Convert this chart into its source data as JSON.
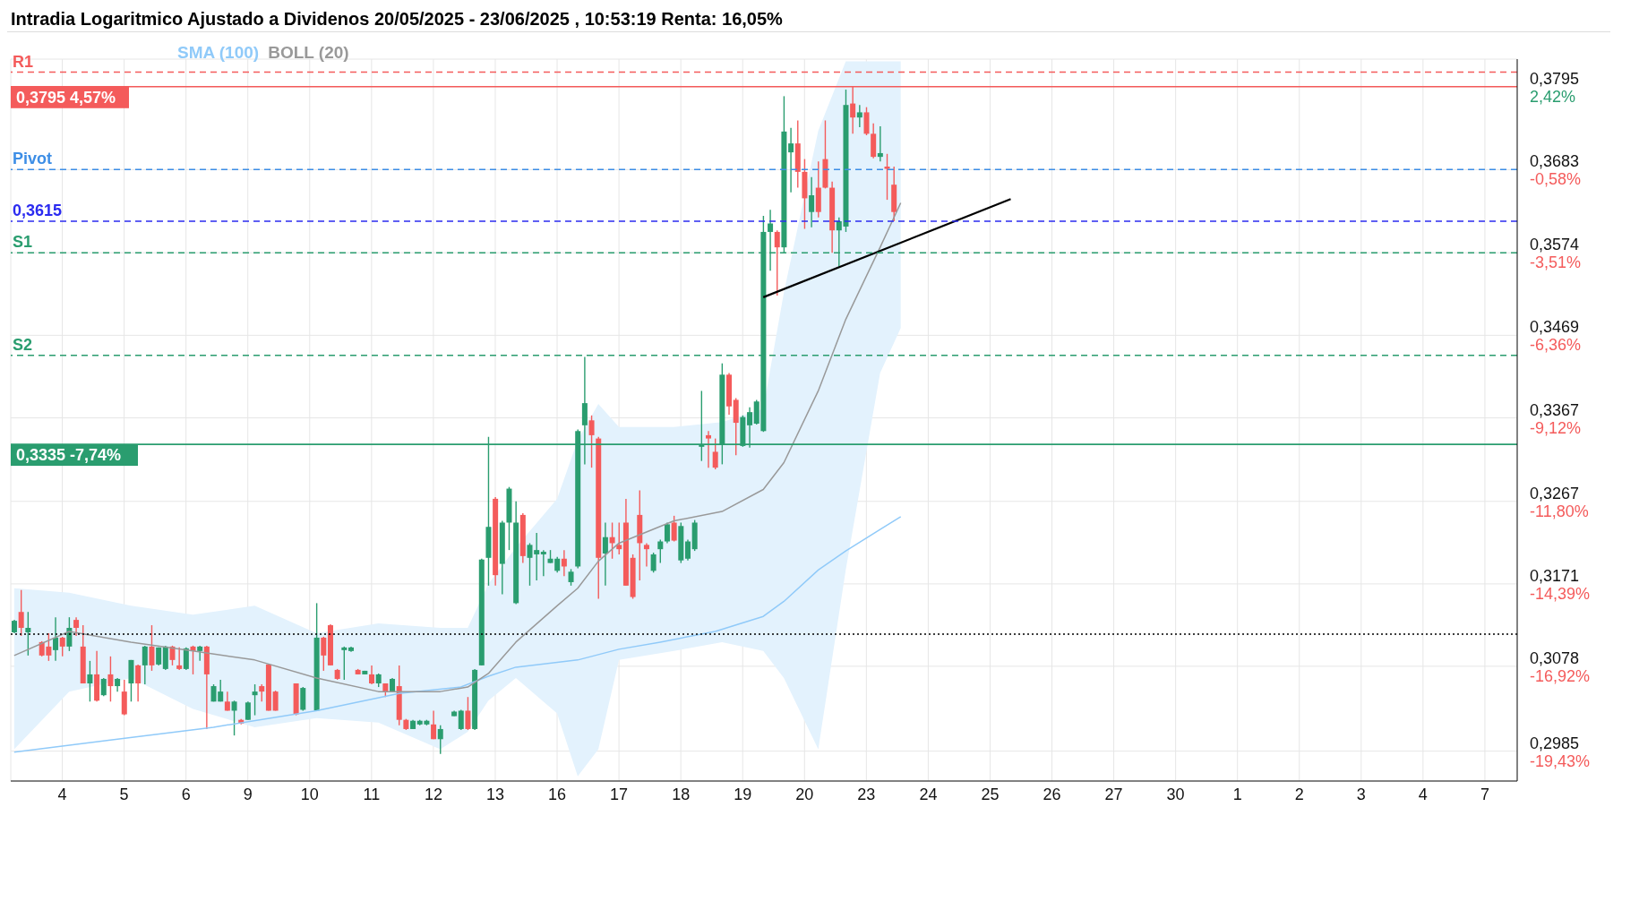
{
  "chart_data": {
    "type": "candlestick",
    "title": "Intradia Logaritmico Ajustado a Dividenos 20/05/2025 - 23/06/2025 , 10:53:19 Renta: 16,05%",
    "categories": [
      null,
      null,
      null,
      null,
      null,
      null,
      null,
      "4",
      null,
      null,
      null,
      null,
      null,
      null,
      null,
      null,
      "5",
      null,
      null,
      null,
      null,
      null,
      null,
      null,
      null,
      "6",
      null,
      null,
      null,
      null,
      null,
      null,
      null,
      null,
      "9",
      null,
      null,
      null,
      null,
      null,
      null,
      null,
      null,
      "10",
      null,
      null,
      null,
      null,
      null,
      null,
      null,
      null,
      "11",
      null,
      null,
      null,
      null,
      null,
      null,
      null,
      null,
      "12",
      null,
      null,
      null,
      null,
      null,
      null,
      null,
      null,
      "13",
      null,
      null,
      null,
      null,
      null,
      null,
      null,
      null,
      "16",
      null,
      null,
      null,
      null,
      null,
      null,
      null,
      null,
      "17",
      null,
      null,
      null,
      null,
      null,
      null,
      null,
      null,
      "18",
      null,
      null,
      null,
      null,
      null,
      null,
      null,
      null,
      "19",
      null,
      null,
      null,
      null,
      null,
      null,
      null,
      null,
      "20",
      null,
      null,
      null,
      null,
      null,
      null,
      null,
      null,
      "23",
      null,
      null,
      null,
      null,
      null,
      null,
      null,
      null,
      "24",
      null,
      null,
      null,
      null,
      null,
      null,
      null,
      null,
      "25",
      null,
      null,
      null,
      null,
      null,
      null,
      null,
      null,
      "26",
      null,
      null,
      null,
      null,
      null,
      null,
      null,
      null,
      "27",
      null,
      null,
      null,
      null,
      null,
      null,
      null,
      null,
      "30",
      null,
      null,
      null,
      null,
      null,
      null,
      null,
      null,
      "1",
      null,
      null,
      null,
      null,
      null,
      null,
      null,
      null,
      "2",
      null,
      null,
      null,
      null,
      null,
      null,
      null,
      null,
      "3",
      null,
      null,
      null,
      null,
      null,
      null,
      null,
      null,
      "4",
      null,
      null,
      null,
      null,
      null,
      null,
      null,
      null,
      "7",
      null,
      null,
      null,
      null
    ],
    "ohlc": [
      [
        0.3116,
        0.313,
        0.3115,
        0.3129
      ],
      [
        0.3139,
        0.3164,
        0.3112,
        0.3121
      ],
      [
        0.3116,
        0.3139,
        0.309,
        0.3121
      ],
      null,
      [
        0.3105,
        0.3106,
        0.3089,
        0.309
      ],
      [
        0.31,
        0.3115,
        0.3084,
        0.309
      ],
      [
        0.3096,
        0.3133,
        0.3084,
        0.311
      ],
      [
        0.311,
        0.3111,
        0.3089,
        0.31
      ],
      [
        0.31,
        0.3133,
        0.3095,
        0.3121
      ],
      [
        0.313,
        0.3133,
        0.3112,
        0.3121
      ],
      [
        0.31,
        0.3124,
        0.3059,
        0.3059
      ],
      [
        0.3059,
        0.3084,
        0.3039,
        0.3069
      ],
      [
        0.3069,
        0.3095,
        0.3039,
        0.304
      ],
      [
        0.3046,
        0.3065,
        0.3045,
        0.3064
      ],
      [
        0.3069,
        0.3089,
        0.3039,
        0.3056
      ],
      [
        0.3056,
        0.3065,
        0.305,
        0.3064
      ],
      [
        0.305,
        0.3063,
        0.3024,
        0.3025
      ],
      [
        0.3059,
        0.3085,
        0.3039,
        0.3085
      ],
      [
        0.3079,
        0.308,
        0.3039,
        0.3059
      ],
      [
        0.3079,
        0.3101,
        0.3058,
        0.31
      ],
      [
        0.31,
        0.3124,
        0.3073,
        0.3079
      ],
      [
        0.308,
        0.3099,
        0.3079,
        0.3099
      ],
      [
        0.3075,
        0.3101,
        0.3074,
        0.31
      ],
      [
        0.31,
        0.3101,
        0.3079,
        0.3085
      ],
      [
        0.3079,
        0.3099,
        0.3074,
        0.3075
      ],
      [
        0.3075,
        0.3099,
        0.3074,
        0.3098
      ],
      [
        0.31,
        0.3101,
        0.3069,
        0.3095
      ],
      [
        0.3095,
        0.3101,
        0.3084,
        0.31
      ],
      [
        0.31,
        0.3101,
        0.3009,
        0.3069
      ],
      [
        0.3039,
        0.3058,
        0.3039,
        0.3056
      ],
      [
        0.3039,
        0.3063,
        0.3039,
        0.305
      ],
      [
        0.3039,
        0.305,
        0.3029,
        0.3029
      ],
      [
        0.3029,
        0.304,
        0.3002,
        0.3039
      ],
      [
        0.3019,
        0.302,
        0.3014,
        0.3015
      ],
      [
        0.3019,
        0.3039,
        0.3019,
        0.3038
      ],
      [
        0.3046,
        0.3058,
        0.3024,
        0.305
      ],
      [
        0.3056,
        0.3058,
        0.3039,
        0.305
      ],
      [
        0.308,
        0.308,
        0.3029,
        0.3029
      ],
      [
        0.305,
        0.3051,
        0.3029,
        0.3029
      ],
      null,
      null,
      [
        0.3059,
        0.3059,
        0.3024,
        0.3025
      ],
      [
        0.303,
        0.3055,
        0.3029,
        0.3054
      ],
      null,
      [
        0.3029,
        0.3149,
        0.3029,
        0.311
      ],
      [
        0.311,
        0.3111,
        0.3073,
        0.309
      ],
      [
        0.3124,
        0.3125,
        0.3079,
        0.3079
      ],
      [
        0.3074,
        0.3075,
        0.3063,
        0.3064
      ],
      [
        0.3096,
        0.31,
        0.3063,
        0.3099
      ],
      [
        0.3095,
        0.31,
        0.3094,
        0.3099
      ],
      [
        0.3074,
        0.3075,
        0.3069,
        0.3069
      ],
      [
        0.3069,
        0.3073,
        0.3069,
        0.3073
      ],
      [
        0.3069,
        0.3079,
        0.3058,
        0.3059
      ],
      [
        0.3059,
        0.307,
        0.3055,
        0.3069
      ],
      [
        0.3059,
        0.3059,
        0.3044,
        0.305
      ],
      [
        0.305,
        0.3065,
        0.305,
        0.3064
      ],
      [
        0.3056,
        0.3079,
        0.3013,
        0.3019
      ],
      [
        0.3019,
        0.302,
        0.3008,
        0.3009
      ],
      [
        0.3009,
        0.3019,
        0.3009,
        0.3018
      ],
      [
        0.3014,
        0.3019,
        0.3013,
        0.3018
      ],
      [
        0.3014,
        0.3019,
        0.3013,
        0.3018
      ],
      [
        0.3014,
        0.3029,
        0.2998,
        0.2998
      ],
      [
        0.2998,
        0.3013,
        0.2982,
        0.3009
      ],
      null,
      [
        0.3023,
        0.3029,
        0.3023,
        0.3028
      ],
      [
        0.3009,
        0.303,
        0.3008,
        0.3029
      ],
      [
        0.3029,
        0.3044,
        0.3008,
        0.3009
      ],
      [
        0.3009,
        0.3075,
        0.3008,
        0.3074
      ],
      [
        0.3079,
        0.32,
        0.3079,
        0.3199
      ],
      [
        0.3201,
        0.3344,
        0.3169,
        0.3237
      ],
      [
        0.327,
        0.3272,
        0.3169,
        0.3181
      ],
      [
        0.3194,
        0.3244,
        0.3159,
        0.3242
      ],
      [
        0.3242,
        0.3284,
        0.321,
        0.3282
      ],
      [
        0.3149,
        0.3267,
        0.3148,
        0.3242
      ],
      [
        0.3251,
        0.3253,
        0.3195,
        0.3203
      ],
      [
        0.3201,
        0.3218,
        0.3169,
        0.3216
      ],
      [
        0.3205,
        0.323,
        0.3175,
        0.321
      ],
      [
        0.3205,
        0.321,
        0.318,
        0.3208
      ],
      [
        0.3195,
        0.321,
        0.3195,
        0.32
      ],
      [
        0.3186,
        0.3202,
        0.3184,
        0.32
      ],
      [
        0.32,
        0.321,
        0.318,
        0.3191
      ],
      [
        0.3173,
        0.3188,
        0.3169,
        0.3185
      ],
      [
        0.3191,
        0.3353,
        0.3189,
        0.3351
      ],
      [
        0.3358,
        0.3442,
        0.3311,
        0.3385
      ],
      [
        0.3364,
        0.337,
        0.3307,
        0.3346
      ],
      [
        0.3342,
        0.3344,
        0.3154,
        0.3201
      ],
      [
        0.3206,
        0.3242,
        0.3169,
        0.3225
      ],
      [
        0.3225,
        0.3242,
        0.32,
        0.3218
      ],
      [
        0.3216,
        0.3242,
        0.3205,
        0.3211
      ],
      [
        0.3242,
        0.327,
        0.3169,
        0.3169
      ],
      [
        0.3201,
        0.3205,
        0.3154,
        0.3156
      ],
      [
        0.3251,
        0.328,
        0.3175,
        0.3218
      ],
      [
        0.3216,
        0.3218,
        0.3191,
        0.3211
      ],
      [
        0.3186,
        0.3207,
        0.3184,
        0.3205
      ],
      [
        0.3211,
        0.3222,
        0.3195,
        0.322
      ],
      [
        0.322,
        0.3242,
        0.3218,
        0.324
      ],
      [
        0.3242,
        0.325,
        0.322,
        0.3221
      ],
      [
        0.3198,
        0.3242,
        0.3195,
        0.3238
      ],
      [
        0.32,
        0.3222,
        0.3198,
        0.322
      ],
      [
        0.3211,
        0.3245,
        0.3209,
        0.3242
      ],
      [
        0.3332,
        0.34,
        0.3315,
        0.3335
      ],
      [
        0.3346,
        0.3351,
        0.3307,
        0.3342
      ],
      [
        0.3326,
        0.3342,
        0.3305,
        0.3307
      ],
      [
        0.3335,
        0.3434,
        0.3311,
        0.342
      ],
      [
        0.342,
        0.3422,
        0.3371,
        0.3381
      ],
      [
        0.3389,
        0.3391,
        0.3322,
        0.3361
      ],
      [
        0.3333,
        0.337,
        0.3332,
        0.3368
      ],
      [
        0.3358,
        0.338,
        0.3331,
        0.3374
      ],
      [
        0.336,
        0.3389,
        0.3359,
        0.3387
      ],
      [
        0.3351,
        0.3622,
        0.335,
        0.3601
      ],
      [
        0.3601,
        0.363,
        0.3551,
        0.3612
      ],
      [
        0.3601,
        0.3603,
        0.3519,
        0.3581
      ],
      [
        0.3581,
        0.3782,
        0.3574,
        0.3734
      ],
      [
        0.3706,
        0.3739,
        0.3653,
        0.3718
      ],
      [
        0.3718,
        0.3749,
        0.3659,
        0.368
      ],
      [
        0.368,
        0.3697,
        0.3605,
        0.3645
      ],
      [
        0.3627,
        0.3673,
        0.3607,
        0.3649
      ],
      [
        0.3659,
        0.3694,
        0.362,
        0.3627
      ],
      [
        0.3697,
        0.3749,
        0.3658,
        0.3659
      ],
      [
        0.3659,
        0.3667,
        0.3574,
        0.3603
      ],
      [
        0.3603,
        0.362,
        0.3556,
        0.3615
      ],
      [
        0.3608,
        0.3791,
        0.3601,
        0.377
      ],
      [
        0.3772,
        0.3795,
        0.3731,
        0.3753
      ],
      [
        0.3753,
        0.377,
        0.374,
        0.376
      ],
      [
        0.376,
        0.3767,
        0.3729,
        0.3731
      ],
      [
        0.3731,
        0.3745,
        0.3698,
        0.37
      ],
      [
        0.37,
        0.3741,
        0.3694,
        0.3705
      ],
      [
        0.3687,
        0.3704,
        0.3643,
        0.3684
      ],
      [
        0.3663,
        0.3687,
        0.3615,
        0.3627
      ],
      null,
      null,
      null,
      null,
      null,
      null,
      null,
      null,
      null,
      null,
      null,
      null,
      null,
      null,
      null,
      null,
      null,
      null,
      null,
      null,
      null,
      null,
      null,
      null,
      null,
      null,
      null,
      null,
      null,
      null,
      null,
      null,
      null,
      null,
      null,
      null,
      null,
      null,
      null,
      null,
      null,
      null,
      null,
      null,
      null,
      null,
      null,
      null,
      null,
      null,
      null,
      null,
      null,
      null,
      null,
      null,
      null,
      null,
      null,
      null,
      null,
      null,
      null,
      null,
      null,
      null,
      null,
      null,
      null,
      null,
      null,
      null,
      null,
      null,
      null,
      null,
      null,
      null,
      null,
      null,
      null,
      null,
      null,
      null,
      null,
      null,
      null,
      null,
      null,
      null
    ],
    "colors": [
      "#2a9d6f",
      "#f45b5b",
      "#2a9d6f",
      null,
      "#f45b5b",
      "#f45b5b",
      "#2a9d6f",
      "#f45b5b",
      "#2a9d6f",
      "#f45b5b",
      "#f45b5b",
      "#2a9d6f",
      "#f45b5b",
      "#2a9d6f",
      "#f45b5b",
      "#2a9d6f",
      "#f45b5b",
      "#2a9d6f",
      "#f45b5b",
      "#2a9d6f",
      "#f45b5b",
      "#2a9d6f",
      "#2a9d6f",
      "#f45b5b",
      "#f45b5b",
      "#2a9d6f",
      "#f45b5b",
      "#2a9d6f",
      "#f45b5b",
      "#2a9d6f",
      "#2a9d6f",
      "#f45b5b",
      "#2a9d6f",
      "#f45b5b",
      "#2a9d6f",
      "#2a9d6f",
      "#f45b5b",
      "#f45b5b",
      "#f45b5b",
      null,
      null,
      "#f45b5b",
      "#2a9d6f",
      null,
      "#2a9d6f",
      "#f45b5b",
      "#f45b5b",
      "#f45b5b",
      "#2a9d6f",
      "#2a9d6f",
      "#f45b5b",
      "#2a9d6f",
      "#f45b5b",
      "#2a9d6f",
      "#f45b5b",
      "#2a9d6f",
      "#f45b5b",
      "#f45b5b",
      "#2a9d6f",
      "#2a9d6f",
      "#2a9d6f",
      "#f45b5b",
      "#2a9d6f",
      null,
      "#2a9d6f",
      "#2a9d6f",
      "#f45b5b",
      "#2a9d6f",
      "#2a9d6f",
      "#2a9d6f",
      "#f45b5b",
      "#2a9d6f",
      "#2a9d6f",
      "#2a9d6f",
      "#f45b5b",
      "#2a9d6f",
      "#2a9d6f",
      "#2a9d6f",
      "#2a9d6f",
      "#2a9d6f",
      "#f45b5b",
      "#2a9d6f",
      "#2a9d6f",
      "#2a9d6f",
      "#f45b5b",
      "#f45b5b",
      "#2a9d6f",
      "#f45b5b",
      "#f45b5b",
      "#f45b5b",
      "#f45b5b",
      "#f45b5b",
      "#f45b5b",
      "#2a9d6f",
      "#2a9d6f",
      "#2a9d6f",
      "#f45b5b",
      "#2a9d6f",
      "#2a9d6f",
      "#2a9d6f",
      "#2a9d6f",
      "#f45b5b",
      "#f45b5b",
      "#2a9d6f",
      "#f45b5b",
      "#f45b5b",
      "#2a9d6f",
      "#2a9d6f",
      "#2a9d6f",
      "#2a9d6f",
      "#2a9d6f",
      "#f45b5b",
      "#2a9d6f",
      "#2a9d6f",
      "#f45b5b",
      "#f45b5b",
      "#2a9d6f",
      "#f45b5b",
      "#f45b5b",
      "#f45b5b",
      "#2a9d6f",
      "#2a9d6f",
      "#f45b5b",
      "#2a9d6f",
      "#f45b5b",
      "#f45b5b",
      "#2a9d6f",
      "#f45b5b",
      "#f45b5b",
      null,
      null,
      null,
      null,
      null,
      null,
      null,
      null,
      null,
      null,
      null,
      null,
      null,
      null,
      null,
      null,
      null,
      null,
      null,
      null,
      null,
      null,
      null,
      null,
      null,
      null,
      null,
      null,
      null,
      null,
      null,
      null,
      null,
      null,
      null,
      null,
      null,
      null,
      null,
      null,
      null,
      null,
      null,
      null,
      null,
      null,
      null,
      null,
      null,
      null,
      null,
      null,
      null,
      null,
      null,
      null,
      null,
      null,
      null,
      null,
      null,
      null,
      null,
      null,
      null,
      null,
      null,
      null,
      null,
      null,
      null,
      null,
      null,
      null,
      null,
      null,
      null,
      null,
      null,
      null,
      null,
      null,
      null,
      null,
      null,
      null,
      null,
      null,
      null,
      null
    ],
    "series": [
      {
        "name": "SMA (100)",
        "type": "line",
        "color": "#90caf9",
        "values": [
          0.2984,
          null,
          null,
          null,
          null,
          null,
          null,
          null,
          null,
          null,
          null,
          null,
          null,
          null,
          0.2997,
          null,
          null,
          null,
          null,
          null,
          null,
          null,
          null,
          null,
          null,
          null,
          null,
          null,
          null,
          0.3011,
          null,
          null,
          null,
          null,
          null,
          null,
          null,
          null,
          null,
          null,
          null,
          null,
          null,
          null,
          0.3029,
          null,
          null,
          null,
          null,
          null,
          null,
          null,
          null,
          null,
          null,
          null,
          0.3048,
          null,
          null,
          null,
          null,
          null,
          null,
          null,
          null,
          0.3055,
          null,
          null,
          null,
          0.3067,
          null,
          null,
          null,
          0.3077,
          null,
          null,
          null,
          null,
          null,
          null,
          null,
          null,
          0.3085,
          null,
          null,
          null,
          null,
          null,
          0.3097,
          null,
          null,
          null,
          null,
          null,
          0.3105,
          null,
          null,
          null,
          null,
          null,
          null,
          null,
          0.3117,
          null,
          null,
          null,
          null,
          null,
          null,
          0.3134,
          null,
          null,
          0.3151,
          null,
          null,
          null,
          null,
          0.3187,
          null,
          null,
          null,
          0.3209,
          null,
          null,
          null,
          null,
          0.3234,
          null,
          null,
          0.3249,
          null,
          null,
          null,
          null,
          null,
          null,
          null,
          null,
          null,
          null,
          null,
          null,
          null,
          null,
          null,
          null,
          null,
          null,
          null,
          null,
          null,
          null,
          null,
          null,
          null,
          null,
          null,
          null,
          null,
          null,
          null,
          null,
          null,
          null,
          null,
          null,
          null,
          null,
          null,
          null,
          null,
          null,
          null,
          null,
          null,
          null,
          null,
          null,
          null,
          null,
          null,
          null,
          null,
          null,
          null,
          null,
          null,
          null,
          null,
          null,
          null,
          null,
          null,
          null,
          null,
          null,
          null,
          null,
          null,
          null,
          null,
          null,
          null,
          null,
          null,
          null,
          null,
          null,
          null,
          null,
          null,
          null,
          null,
          null,
          null,
          null,
          null,
          null,
          null
        ]
      },
      {
        "name": "BOLL (20)",
        "type": "line",
        "color": "#999999",
        "values": [
          0.309,
          null,
          null,
          null,
          null,
          null,
          null,
          null,
          0.3117,
          null,
          null,
          null,
          null,
          null,
          null,
          null,
          null,
          0.3105,
          null,
          null,
          null,
          null,
          null,
          null,
          null,
          null,
          0.3095,
          null,
          null,
          null,
          null,
          null,
          null,
          null,
          null,
          0.3085,
          null,
          null,
          null,
          null,
          null,
          null,
          null,
          null,
          0.3065,
          null,
          null,
          null,
          null,
          null,
          null,
          null,
          null,
          0.305,
          null,
          null,
          null,
          null,
          null,
          null,
          null,
          null,
          0.305,
          null,
          null,
          null,
          0.3055,
          null,
          null,
          0.307,
          null,
          null,
          null,
          0.3105,
          null,
          null,
          null,
          null,
          null,
          0.3146,
          null,
          null,
          0.3166,
          null,
          null,
          0.3197,
          null,
          null,
          0.3218,
          null,
          null,
          null,
          null,
          null,
          null,
          null,
          0.3244,
          null,
          null,
          null,
          null,
          null,
          null,
          0.3255,
          null,
          null,
          null,
          null,
          null,
          0.3281,
          null,
          null,
          0.3313,
          null,
          null,
          null,
          null,
          0.34,
          null,
          null,
          null,
          0.3489,
          null,
          null,
          null,
          null,
          0.3581,
          null,
          null,
          0.3639,
          null,
          null,
          null,
          null,
          null,
          null,
          null,
          null,
          null,
          null,
          null,
          null,
          null,
          null,
          null,
          null,
          null,
          null,
          null,
          null,
          null,
          null,
          null,
          null,
          null,
          null,
          null,
          null,
          null,
          null,
          null,
          null,
          null,
          null,
          null,
          null,
          null,
          null,
          null,
          null,
          null,
          null,
          null,
          null,
          null,
          null,
          null,
          null,
          null,
          null,
          null,
          null,
          null,
          null,
          null,
          null,
          null,
          null,
          null,
          null,
          null,
          null,
          null,
          null,
          null,
          null,
          null,
          null,
          null,
          null,
          null,
          null,
          null,
          null,
          null,
          null,
          null,
          null,
          null,
          null,
          null,
          null,
          null,
          null,
          null,
          null,
          null,
          null,
          null
        ],
        "lower": [
          0.2987,
          null,
          null,
          null,
          null,
          null,
          null,
          null,
          0.305,
          null,
          null,
          null,
          null,
          null,
          null,
          null,
          null,
          0.3065,
          null,
          null,
          null,
          null,
          null,
          null,
          null,
          null,
          0.3031,
          null,
          null,
          null,
          null,
          null,
          null,
          null,
          null,
          0.3011,
          null,
          null,
          null,
          null,
          null,
          null,
          null,
          null,
          0.3021,
          null,
          null,
          null,
          null,
          null,
          null,
          null,
          null,
          0.3016,
          null,
          null,
          null,
          null,
          null,
          null,
          null,
          null,
          0.2987,
          null,
          null,
          null,
          0.3006,
          null,
          null,
          0.304,
          null,
          null,
          null,
          0.3065,
          null,
          null,
          null,
          null,
          null,
          0.3026,
          null,
          null,
          0.2958,
          null,
          null,
          0.2987,
          null,
          null,
          0.3085,
          null,
          null,
          null,
          null,
          null,
          null,
          null,
          0.3095,
          null,
          null,
          null,
          null,
          null,
          null,
          0.3105,
          null,
          null,
          null,
          null,
          null,
          0.3095,
          null,
          null,
          0.3065,
          null,
          null,
          null,
          null,
          0.2987,
          null,
          null,
          null,
          0.3187,
          null,
          null,
          null,
          null,
          0.3422,
          null,
          null,
          0.3478,
          null,
          null,
          null,
          null,
          null,
          null,
          null,
          null,
          null,
          null,
          null,
          null,
          null,
          null,
          null,
          null,
          null,
          null,
          null,
          null,
          null,
          null,
          null,
          null,
          null,
          null,
          null,
          null,
          null,
          null,
          null,
          null,
          null,
          null,
          null,
          null,
          null,
          null,
          null,
          null,
          null,
          null,
          null,
          null,
          null,
          null,
          null,
          null,
          null,
          null,
          null,
          null,
          null,
          null,
          null,
          null,
          null,
          null,
          null,
          null,
          null,
          null,
          null,
          null,
          null,
          null,
          null,
          null,
          null,
          null,
          null,
          null,
          null,
          null,
          null,
          null,
          null,
          null,
          null,
          null,
          null,
          null,
          null,
          null,
          null,
          null,
          null,
          null,
          null
        ],
        "upper": [
          0.3166,
          null,
          null,
          null,
          null,
          null,
          null,
          null,
          0.3161,
          null,
          null,
          null,
          null,
          null,
          null,
          null,
          null,
          0.3146,
          null,
          null,
          null,
          null,
          null,
          null,
          null,
          null,
          0.3136,
          null,
          null,
          null,
          null,
          null,
          null,
          null,
          null,
          0.3146,
          null,
          null,
          null,
          null,
          null,
          null,
          null,
          null,
          0.3115,
          null,
          null,
          null,
          null,
          null,
          null,
          null,
          null,
          0.3126,
          null,
          null,
          null,
          null,
          null,
          null,
          null,
          null,
          0.3121,
          null,
          null,
          null,
          0.3121,
          null,
          null,
          0.3171,
          null,
          null,
          null,
          0.3213,
          null,
          null,
          null,
          null,
          null,
          0.327,
          null,
          null,
          0.334,
          null,
          null,
          0.3384,
          null,
          null,
          0.3356,
          null,
          null,
          null,
          null,
          null,
          null,
          null,
          0.3356,
          null,
          null,
          null,
          null,
          null,
          null,
          0.3362,
          null,
          null,
          null,
          null,
          null,
          0.3378,
          null,
          null,
          0.3523,
          null,
          null,
          null,
          null,
          0.3735,
          null,
          null,
          null,
          0.383,
          null,
          null,
          null,
          null,
          0.383,
          null,
          null,
          0.383,
          null,
          null,
          null,
          null,
          null,
          null,
          null,
          null,
          null,
          null,
          null,
          null,
          null,
          null,
          null,
          null,
          null,
          null,
          null,
          null,
          null,
          null,
          null,
          null,
          null,
          null,
          null,
          null,
          null,
          null,
          null,
          null,
          null,
          null,
          null,
          null,
          null,
          null,
          null,
          null,
          null,
          null,
          null,
          null,
          null,
          null,
          null,
          null,
          null,
          null,
          null,
          null,
          null,
          null,
          null,
          null,
          null,
          null,
          null,
          null,
          null,
          null,
          null,
          null,
          null,
          null,
          null,
          null,
          null,
          null,
          null,
          null,
          null,
          null,
          null,
          null,
          null,
          null,
          null,
          null,
          null,
          null,
          null,
          null,
          null,
          null,
          null,
          null,
          null
        ]
      },
      {
        "type": "line",
        "color": "#000000",
        "values": [
          null,
          null,
          null,
          null,
          null,
          null,
          null,
          null,
          null,
          null,
          null,
          null,
          null,
          null,
          null,
          null,
          null,
          null,
          null,
          null,
          null,
          null,
          null,
          null,
          null,
          null,
          null,
          null,
          null,
          null,
          null,
          null,
          null,
          null,
          null,
          null,
          null,
          null,
          null,
          null,
          null,
          null,
          null,
          null,
          null,
          null,
          null,
          null,
          null,
          null,
          null,
          null,
          null,
          null,
          null,
          null,
          null,
          null,
          null,
          null,
          null,
          null,
          null,
          null,
          null,
          null,
          null,
          null,
          null,
          null,
          null,
          null,
          null,
          null,
          null,
          null,
          null,
          null,
          null,
          null,
          null,
          null,
          null,
          null,
          null,
          null,
          null,
          null,
          null,
          null,
          null,
          null,
          null,
          null,
          null,
          null,
          null,
          null,
          null,
          null,
          null,
          null,
          null,
          null,
          null,
          null,
          null,
          null,
          null,
          0.3517,
          null,
          null,
          null,
          null,
          null,
          null,
          null,
          null,
          null,
          null,
          null,
          null,
          null,
          null,
          null,
          null,
          null,
          null,
          null,
          null,
          null,
          null,
          null,
          null,
          null,
          null,
          null,
          null,
          null,
          null,
          null,
          null,
          null,
          null,
          null,
          0.3644,
          null,
          null,
          null,
          null,
          null,
          null,
          null,
          null,
          null,
          null,
          null,
          null,
          null,
          null,
          null,
          null,
          null,
          null,
          null,
          null,
          null,
          null,
          null,
          null,
          null,
          null,
          null,
          null,
          null,
          null,
          null,
          null,
          null,
          null,
          null,
          null,
          null,
          null,
          null,
          null,
          null,
          null,
          null,
          null,
          null,
          null,
          null,
          null,
          null,
          null,
          null,
          null,
          null,
          null,
          null,
          null,
          null,
          null,
          null,
          null,
          null,
          null,
          null,
          null,
          null,
          null,
          null,
          null,
          null,
          null,
          null,
          null,
          null
        ]
      }
    ],
    "ref_lines": [
      {
        "axis": "y",
        "value": 0.3815,
        "label": "R1",
        "color": "#f45b5b",
        "line_style": "dashed"
      },
      {
        "axis": "y",
        "value": 0.3795,
        "label": "0,3795 4,57%",
        "color": "#f45b5b",
        "line_style": "solid"
      },
      {
        "axis": "y",
        "value": 0.3683,
        "label": "Pivot",
        "color": "#3d8ee6",
        "line_style": "dashed"
      },
      {
        "axis": "y",
        "value": 0.3615,
        "label": "0,3615",
        "color": "#2b2bf0",
        "line_style": "dashed"
      },
      {
        "axis": "y",
        "value": 0.3574,
        "label": "S1",
        "color": "#2a9d6f",
        "line_style": "dashed"
      },
      {
        "axis": "y",
        "value": 0.3444,
        "label": "S2",
        "color": "#2a9d6f",
        "line_style": "dashed"
      },
      {
        "axis": "y",
        "value": 0.3335,
        "label": "0,3335 -7,74%",
        "color": "#2a9d6f",
        "line_style": "solid"
      },
      {
        "axis": "y",
        "value": 0.3114,
        "color": "#000000",
        "line_style": "dotted"
      }
    ],
    "annotations": [
      "-19,43%",
      "-16,92%",
      "-14,39%",
      "-11,80%",
      "-9,12%",
      "-6,36%",
      "-3,51%",
      "-0,58%",
      "2,42%"
    ],
    "log": true,
    "ylim": [
      0.2953,
      0.3833
    ],
    "yticks": [
      {
        "value": 0.2985,
        "label": "0,2985"
      },
      {
        "value": 0.3078,
        "label": "0,3078"
      },
      {
        "value": 0.3171,
        "label": "0,3171"
      },
      {
        "value": 0.3267,
        "label": "0,3267"
      },
      {
        "value": 0.3367,
        "label": "0,3367"
      },
      {
        "value": 0.3469,
        "label": "0,3469"
      },
      {
        "value": 0.3574,
        "label": "0,3574"
      },
      {
        "value": 0.3683,
        "label": "0,3683"
      },
      {
        "value": 0.3795,
        "label": "0,3795"
      }
    ],
    "grid": true,
    "legend": "top left"
  }
}
